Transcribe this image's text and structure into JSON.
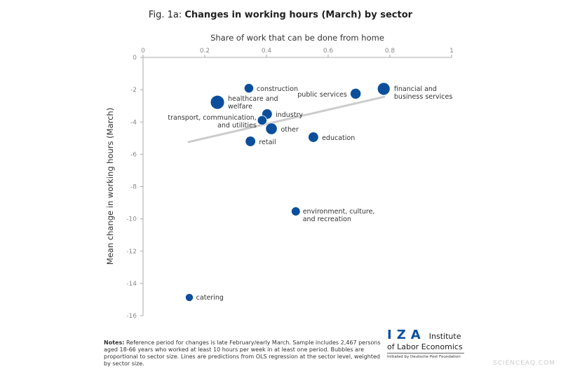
{
  "title_prefix": "Fig. 1a: ",
  "title_bold": "Changes in working hours (March) by sector",
  "notes_label": "Notes:",
  "notes_text": " Reference period for changes is late February/early March. Sample includes 2,467 persons aged 18-66 years who worked at least 10 hours per week in at least one period. Bubbles are proportional to sector size. Lines are predictions from OLS regression at the sector level, weighted by sector size.",
  "logo": {
    "letters": "IZA",
    "line1": "Institute",
    "line2": "of Labor Economics",
    "line3": "Initiated by Deutsche Post Foundation"
  },
  "watermark": "SCIENCEAQ.COM",
  "chart_data": {
    "type": "scatter",
    "xlabel": "Share of work that can be done from home",
    "ylabel": "Mean change in working hours (March)",
    "xlim": [
      0,
      1
    ],
    "ylim": [
      -16,
      0
    ],
    "xticks": [
      "0",
      "0.2",
      "0.4",
      "0.6",
      "0.8",
      "1"
    ],
    "yticks": [
      "0",
      "-2",
      "-4",
      "-6",
      "-8",
      "-10",
      "-12",
      "-14",
      "-16"
    ],
    "grid": false,
    "x_axis_position": "top",
    "bubble_color": "#0b4f9c",
    "line_color": "#cccccc",
    "points": [
      {
        "label": "construction",
        "x": 0.343,
        "y": -1.91,
        "size": 5
      },
      {
        "label": "healthcare and\nwelfare",
        "x": 0.241,
        "y": -2.78,
        "size": 11
      },
      {
        "label": "public services",
        "x": 0.689,
        "y": -2.25,
        "size": 6.5
      },
      {
        "label": "financial and\nbusiness services",
        "x": 0.78,
        "y": -1.95,
        "size": 9
      },
      {
        "label": "industry",
        "x": 0.402,
        "y": -3.51,
        "size": 6
      },
      {
        "label": "transport, communication,\nand utilities",
        "x": 0.386,
        "y": -3.9,
        "size": 5
      },
      {
        "label": "other",
        "x": 0.416,
        "y": -4.42,
        "size": 7.5
      },
      {
        "label": "retail",
        "x": 0.348,
        "y": -5.2,
        "size": 6
      },
      {
        "label": "education",
        "x": 0.552,
        "y": -4.94,
        "size": 6
      },
      {
        "label": "environment, culture,\nand recreation",
        "x": 0.495,
        "y": -9.54,
        "size": 4.5
      },
      {
        "label": "catering",
        "x": 0.15,
        "y": -14.87,
        "size": 3.5
      }
    ],
    "regression_line": {
      "x": [
        0.145,
        0.784
      ],
      "y": [
        -5.25,
        -2.43
      ]
    }
  }
}
